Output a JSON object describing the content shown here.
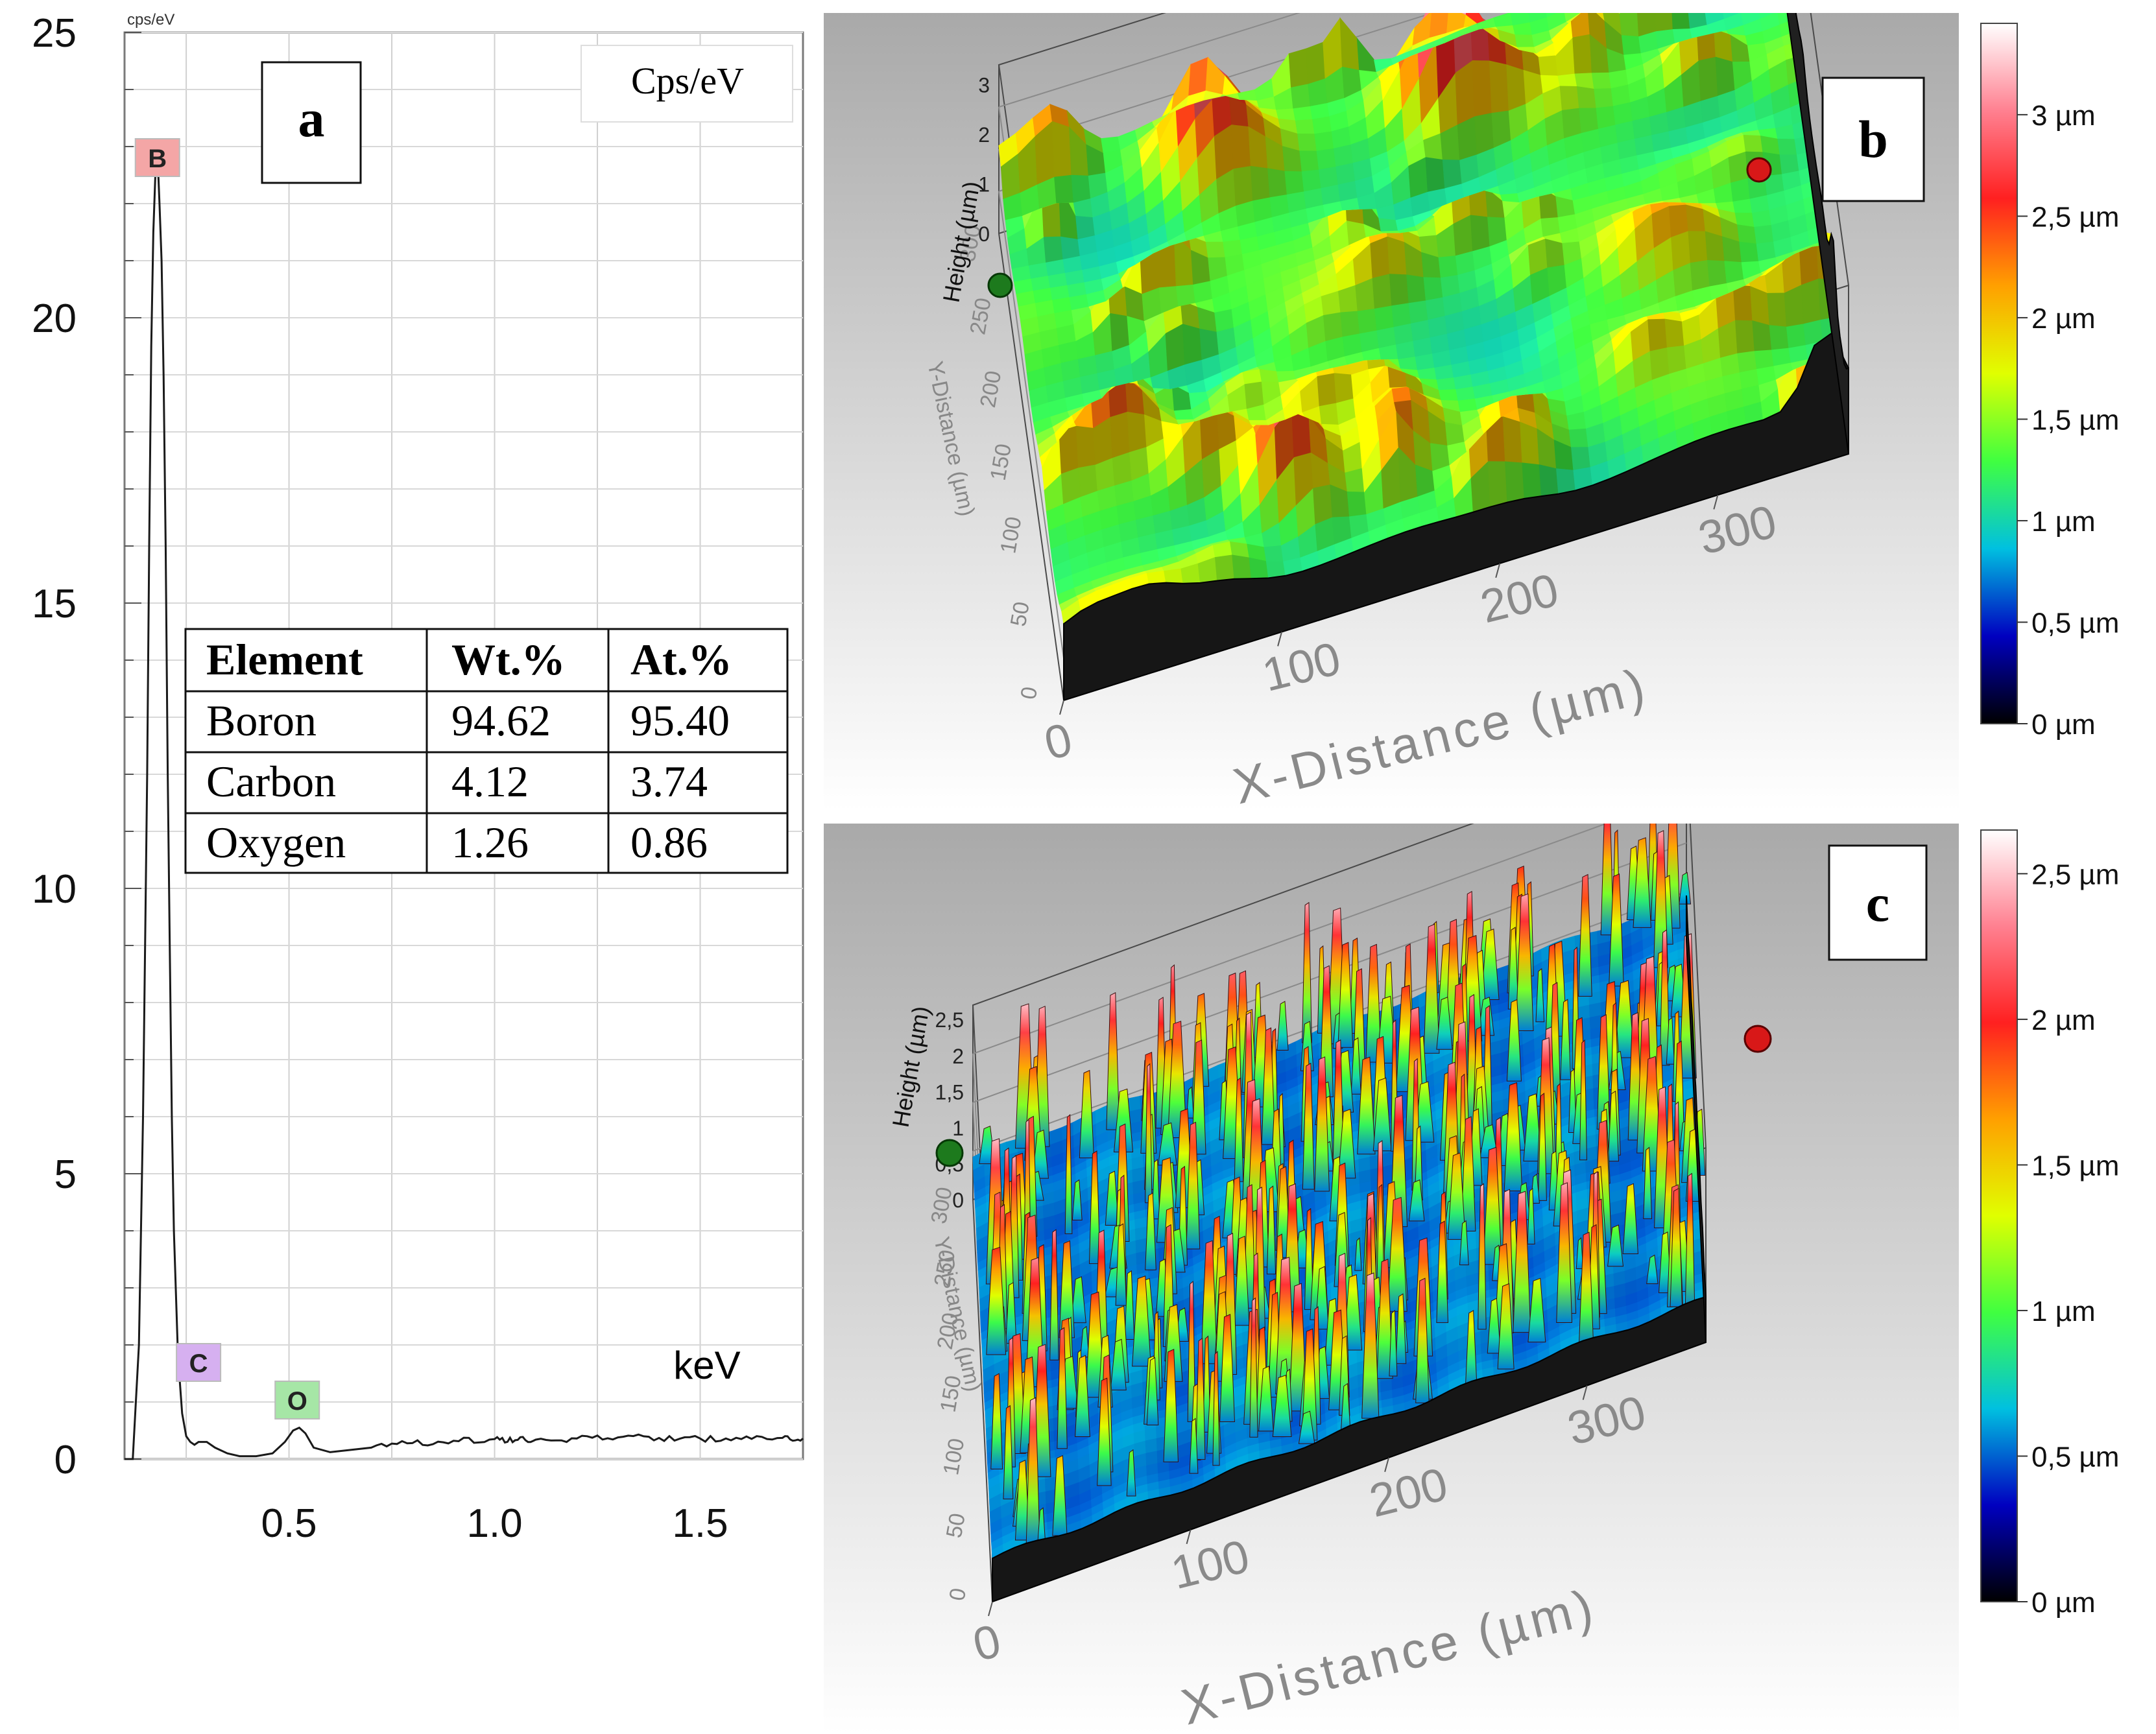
{
  "chart_data": [
    {
      "panel": "a",
      "type": "line",
      "units_top": "cps/eV",
      "units_box": "Cps/eV",
      "xunit": "keV",
      "xlim": [
        0.1,
        1.75
      ],
      "ylim": [
        0,
        25
      ],
      "xticks": [
        "0.5",
        "1.0",
        "1.5"
      ],
      "xtick_values": [
        0.5,
        1.0,
        1.5
      ],
      "yticks": [
        "0",
        "5",
        "10",
        "15",
        "20",
        "25"
      ],
      "ytick_values": [
        0,
        5,
        10,
        15,
        20,
        25
      ],
      "grid": true,
      "peak_markers": [
        {
          "label": "B",
          "x": 0.18,
          "y": 22.9,
          "color": "#f4a6a6"
        },
        {
          "label": "C",
          "x": 0.28,
          "y": 1.6,
          "color": "#d6b0f0"
        },
        {
          "label": "O",
          "x": 0.52,
          "y": 0.8,
          "color": "#a6e6a6"
        }
      ],
      "series": [
        {
          "x": [
            0.1,
            0.12,
            0.135,
            0.145,
            0.155,
            0.16,
            0.165,
            0.17,
            0.175,
            0.18,
            0.185,
            0.19,
            0.195,
            0.2,
            0.205,
            0.21,
            0.215,
            0.22,
            0.23,
            0.24,
            0.25,
            0.26,
            0.27,
            0.28,
            0.3,
            0.32,
            0.35,
            0.38,
            0.42,
            0.46,
            0.49,
            0.51,
            0.525,
            0.54,
            0.56,
            0.6,
            0.7,
            0.8,
            0.9,
            1.0,
            1.05,
            1.1,
            1.2,
            1.3,
            1.4,
            1.5,
            1.6,
            1.7,
            1.75
          ],
          "y": [
            0,
            0,
            2.0,
            6.0,
            12.0,
            16.0,
            19.5,
            21.5,
            22.5,
            22.9,
            22.0,
            21.0,
            19.0,
            16.0,
            12.0,
            9.0,
            6.0,
            4.0,
            1.8,
            0.8,
            0.4,
            0.3,
            0.25,
            0.3,
            0.3,
            0.2,
            0.1,
            0.05,
            0.05,
            0.1,
            0.3,
            0.5,
            0.55,
            0.45,
            0.2,
            0.12,
            0.2,
            0.28,
            0.32,
            0.35,
            0.33,
            0.34,
            0.36,
            0.38,
            0.37,
            0.36,
            0.35,
            0.37,
            0.36
          ]
        }
      ],
      "table": {
        "columns": [
          "Element",
          "Wt.%",
          "At.%"
        ],
        "rows": [
          [
            "Boron",
            "94.62",
            "95.40"
          ],
          [
            "Carbon",
            "4.12",
            "3.74"
          ],
          [
            "Oxygen",
            "1.26",
            "0.86"
          ]
        ]
      }
    },
    {
      "panel": "b",
      "type": "surface-3d",
      "zlabel": "Height (µm)",
      "xlabel": "X-Distance (µm)",
      "ylabel": "Y-Distance (µm)",
      "zticks": [
        "0",
        "1",
        "2",
        "3"
      ],
      "xticks": [
        "0",
        "100",
        "200",
        "300"
      ],
      "yticks": [
        "0",
        "50",
        "100",
        "150",
        "200",
        "250",
        "300"
      ],
      "colorbar": {
        "labels": [
          "3 µm",
          "2,5 µm",
          "2 µm",
          "1,5 µm",
          "1 µm",
          "0,5 µm",
          "0 µm"
        ],
        "values": [
          3.0,
          2.5,
          2.0,
          1.5,
          1.0,
          0.5,
          0.0
        ],
        "max": 3.45,
        "colors": [
          "#000000",
          "#0000c0",
          "#00c0e0",
          "#40ff40",
          "#e0ff00",
          "#ffa000",
          "#ff2020",
          "#ff8090",
          "#ffffff"
        ]
      }
    },
    {
      "panel": "c",
      "type": "surface-3d",
      "zlabel": "Height (µm)",
      "xlabel": "X-Distance (µm)",
      "ylabel": "Y-Distance (µm)",
      "zticks": [
        "0",
        "0,5",
        "1",
        "1,5",
        "2",
        "2,5"
      ],
      "xticks": [
        "0",
        "100",
        "200",
        "300"
      ],
      "yticks": [
        "0",
        "50",
        "100",
        "150",
        "200",
        "250",
        "300"
      ],
      "colorbar": {
        "labels": [
          "2,5 µm",
          "2 µm",
          "1,5 µm",
          "1 µm",
          "0,5 µm",
          "0 µm"
        ],
        "values": [
          2.5,
          2.0,
          1.5,
          1.0,
          0.5,
          0.0
        ],
        "max": 2.65,
        "colors": [
          "#000000",
          "#0000c0",
          "#00c0e0",
          "#40ff40",
          "#e0ff00",
          "#ffa000",
          "#ff2020",
          "#ff8090",
          "#ffffff"
        ]
      }
    }
  ]
}
